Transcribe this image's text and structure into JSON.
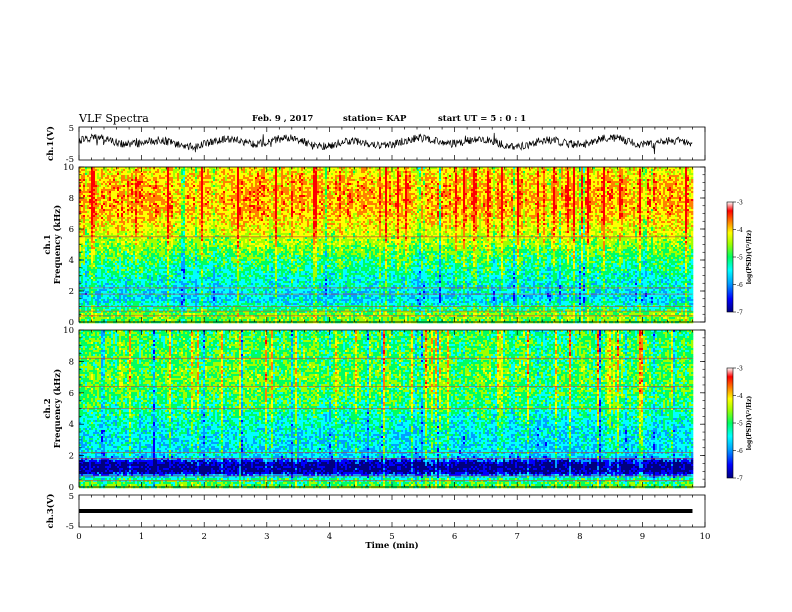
{
  "header": {
    "title": "VLF Spectra",
    "date": "Feb. 9 , 2017",
    "station": "station= KAP",
    "start_ut": "start UT = 5 : 0 : 1"
  },
  "chart_data": [
    {
      "type": "line",
      "panel": "ch1-waveform",
      "ylabel": "ch.1(V)",
      "ylim": [
        -5,
        5
      ],
      "yticks": [
        "5",
        "-5"
      ],
      "xlim": [
        0,
        10
      ],
      "x_extent_min": 9.8,
      "waveform": "noisy signal oscillating roughly between -1 and 2 V with slow quasi-periodic (~1 min) wander"
    },
    {
      "type": "heatmap",
      "panel": "ch1-spectrogram",
      "ylabel": "ch.1 Frequency (kHz)",
      "ylim": [
        0,
        10
      ],
      "yticks": [
        "0",
        "2",
        "4",
        "6",
        "8",
        "10"
      ],
      "xlim": [
        0,
        10
      ],
      "x_extent_min": 9.8,
      "colorbar": {
        "label": "log(PSD)(V²/Hz)",
        "ticks": [
          "-3",
          "-4",
          "-5",
          "-6",
          "-7"
        ],
        "range": [
          -7,
          -3
        ]
      },
      "profile": [
        {
          "f": 0.0,
          "v": -4.8
        },
        {
          "f": 0.5,
          "v": -4.6
        },
        {
          "f": 1.0,
          "v": -5.2
        },
        {
          "f": 1.5,
          "v": -5.6
        },
        {
          "f": 2.0,
          "v": -5.5
        },
        {
          "f": 3.0,
          "v": -5.3
        },
        {
          "f": 4.0,
          "v": -5.0
        },
        {
          "f": 5.0,
          "v": -4.6
        },
        {
          "f": 6.0,
          "v": -4.2
        },
        {
          "f": 7.0,
          "v": -3.9
        },
        {
          "f": 8.0,
          "v": -3.8
        },
        {
          "f": 9.0,
          "v": -3.9
        },
        {
          "f": 10.0,
          "v": -4.2
        }
      ],
      "lines_khz": [
        5.5,
        2.2,
        1.8,
        1.0,
        0.7,
        0.4
      ]
    },
    {
      "type": "heatmap",
      "panel": "ch2-spectrogram",
      "ylabel": "ch.2 Frequency (kHz)",
      "ylim": [
        0,
        10
      ],
      "yticks": [
        "0",
        "2",
        "4",
        "6",
        "8",
        "10"
      ],
      "xlim": [
        0,
        10
      ],
      "x_extent_min": 9.8,
      "colorbar": {
        "label": "log(PSD)(V²/Hz)",
        "ticks": [
          "-3",
          "-4",
          "-5",
          "-6",
          "-7"
        ],
        "range": [
          -7,
          -3
        ]
      },
      "profile": [
        {
          "f": 0.0,
          "v": -4.7
        },
        {
          "f": 0.6,
          "v": -5.2
        },
        {
          "f": 1.0,
          "v": -6.7
        },
        {
          "f": 1.5,
          "v": -6.8
        },
        {
          "f": 2.0,
          "v": -5.6
        },
        {
          "f": 3.0,
          "v": -5.5
        },
        {
          "f": 4.0,
          "v": -5.4
        },
        {
          "f": 5.0,
          "v": -5.1
        },
        {
          "f": 6.0,
          "v": -4.9
        },
        {
          "f": 7.0,
          "v": -4.8
        },
        {
          "f": 8.0,
          "v": -4.9
        },
        {
          "f": 9.0,
          "v": -4.9
        },
        {
          "f": 10.0,
          "v": -5.0
        }
      ],
      "lines_khz": [
        8.2,
        6.4,
        5.0,
        2.2,
        1.8,
        0.7,
        0.4
      ]
    },
    {
      "type": "line",
      "panel": "ch3-waveform",
      "ylabel": "ch.3(V)",
      "ylim": [
        -5,
        5
      ],
      "yticks": [
        "5",
        "-5"
      ],
      "xlim": [
        0,
        10
      ],
      "x_extent_min": 9.8,
      "constant_value": 0,
      "xlabel": "Time (min)",
      "xticks": [
        "0",
        "1",
        "2",
        "3",
        "4",
        "5",
        "6",
        "7",
        "8",
        "9",
        "10"
      ]
    }
  ],
  "colors": {
    "colormap": [
      "#000080",
      "#0000ff",
      "#00a0ff",
      "#00ffff",
      "#00ff60",
      "#a0ff00",
      "#ffff00",
      "#ff8000",
      "#ff0000",
      "#ffffff"
    ],
    "axis": "#000000",
    "waveform": "#000000"
  }
}
